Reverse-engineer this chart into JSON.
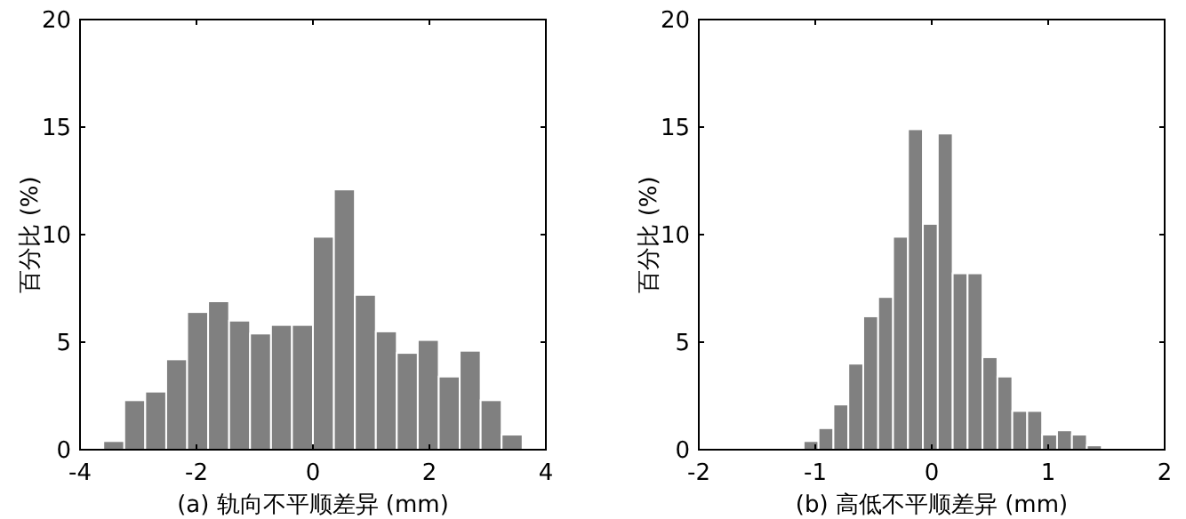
{
  "chart_data": [
    {
      "type": "histogram",
      "xlabel": "(a) 轨向不平顺差异 (mm)",
      "ylabel": "百分比 (%)",
      "color": "#808080",
      "bins": [
        -3.6,
        -3.24,
        -2.88,
        -2.52,
        -2.16,
        -1.8,
        -1.44,
        -1.08,
        -0.72,
        -0.36,
        0,
        0.36,
        0.72,
        1.08,
        1.44,
        1.8,
        2.16,
        2.52,
        2.88,
        3.24,
        3.6
      ],
      "values": [
        0.4,
        2.3,
        2.7,
        4.2,
        6.4,
        6.9,
        6.0,
        5.4,
        5.8,
        5.8,
        9.9,
        12.1,
        7.2,
        5.5,
        4.5,
        5.1,
        3.4,
        4.6,
        2.3,
        0.7
      ],
      "xlim": [
        -4,
        4
      ],
      "xticks": [
        -4,
        -2,
        0,
        2,
        4
      ],
      "ylim": [
        0,
        20
      ],
      "yticks": [
        0,
        5,
        10,
        15,
        20
      ],
      "grid": false
    },
    {
      "type": "histogram",
      "xlabel": "(b) 高低不平顺差异 (mm)",
      "ylabel": "百分比 (%)",
      "color": "#808080",
      "bins": [
        -1.1,
        -0.972,
        -0.844,
        -0.716,
        -0.588,
        -0.46,
        -0.332,
        -0.204,
        -0.076,
        0.052,
        0.18,
        0.308,
        0.436,
        0.564,
        0.692,
        0.82,
        0.948,
        1.076,
        1.204,
        1.332,
        1.46
      ],
      "values": [
        0.4,
        1.0,
        2.1,
        4.0,
        6.2,
        7.1,
        9.9,
        14.9,
        10.5,
        14.7,
        8.2,
        8.2,
        4.3,
        3.4,
        1.8,
        1.8,
        0.7,
        0.9,
        0.7,
        0.2
      ],
      "xlim": [
        -2,
        2
      ],
      "xticks": [
        -2,
        -1,
        0,
        1,
        2
      ],
      "ylim": [
        0,
        20
      ],
      "yticks": [
        0,
        5,
        10,
        15,
        20
      ],
      "grid": false
    }
  ]
}
